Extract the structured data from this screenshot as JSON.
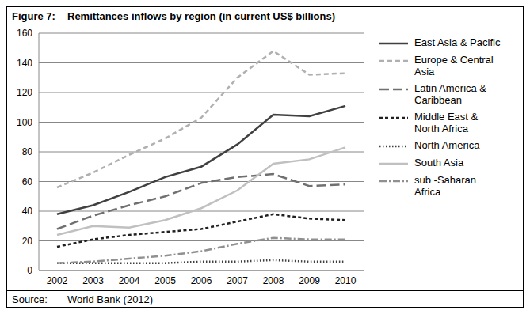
{
  "chart_data": {
    "type": "line",
    "figure_label": "Figure 7:",
    "title": "Remittances inflows by region (in current US$ billions)",
    "source_label": "Source:",
    "source": "World Bank (2012)",
    "categories": [
      "2002",
      "2003",
      "2004",
      "2005",
      "2006",
      "2007",
      "2008",
      "2009",
      "2010"
    ],
    "series": [
      {
        "name": "East Asia & Pacific",
        "color": "#404040",
        "line_style": "solid",
        "values": [
          38,
          44,
          53,
          63,
          70,
          85,
          105,
          104,
          111
        ]
      },
      {
        "name": "Europe & Central Asia",
        "color": "#b0b0b0",
        "line_style": "dashed",
        "values": [
          56,
          66,
          78,
          89,
          103,
          130,
          148,
          132,
          133
        ]
      },
      {
        "name": "Latin America & Caribbean",
        "color": "#707070",
        "line_style": "long_dashed",
        "values": [
          28,
          37,
          44,
          50,
          59,
          63,
          65,
          57,
          58
        ]
      },
      {
        "name": "Middle East & North Africa",
        "color": "#202020",
        "line_style": "short_dashed",
        "values": [
          16,
          21,
          24,
          26,
          28,
          33,
          38,
          35,
          34
        ]
      },
      {
        "name": "North America",
        "color": "#404040",
        "line_style": "dotted",
        "values": [
          5,
          5,
          5,
          5,
          6,
          6,
          7,
          6,
          6
        ]
      },
      {
        "name": "South Asia",
        "color": "#c0c0c0",
        "line_style": "solid",
        "values": [
          24,
          30,
          29,
          34,
          42,
          54,
          72,
          75,
          83
        ]
      },
      {
        "name": "sub -Saharan Africa",
        "color": "#909090",
        "line_style": "dash_dot",
        "values": [
          5,
          6,
          8,
          10,
          13,
          18,
          22,
          21,
          21
        ]
      }
    ],
    "ylim": [
      0,
      160
    ],
    "yticks": [
      0,
      20,
      40,
      60,
      80,
      100,
      120,
      140,
      160
    ],
    "grid": true,
    "legend": "right"
  }
}
